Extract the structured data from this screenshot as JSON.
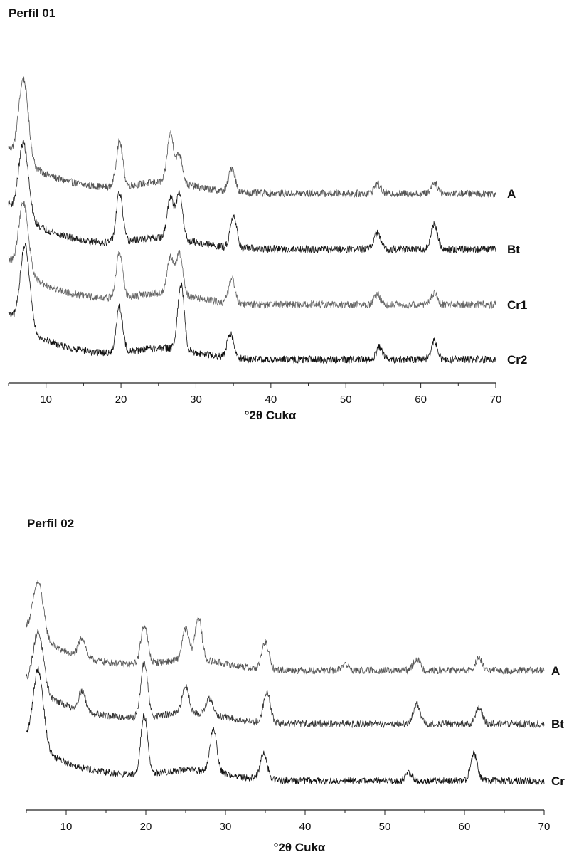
{
  "chart_data": [
    {
      "type": "line",
      "title": "Perfil 01",
      "xlabel": "°2θ Cukα",
      "ylabel": "",
      "xlim": [
        5,
        70
      ],
      "xticks": [
        10,
        20,
        30,
        40,
        50,
        60,
        70
      ],
      "yticks_shown": false,
      "grid": false,
      "legend": "labels at right end of each trace",
      "series": [
        {
          "name": "A",
          "color": "#555555",
          "peaks": [
            {
              "x": 7.0,
              "h": 1.0
            },
            {
              "x": 19.8,
              "h": 0.55
            },
            {
              "x": 26.6,
              "h": 0.6
            },
            {
              "x": 27.8,
              "h": 0.35
            },
            {
              "x": 34.8,
              "h": 0.3
            },
            {
              "x": 54.2,
              "h": 0.12
            },
            {
              "x": 61.8,
              "h": 0.14
            }
          ]
        },
        {
          "name": "Bt",
          "color": "#1a1a1a",
          "peaks": [
            {
              "x": 7.0,
              "h": 0.9
            },
            {
              "x": 19.8,
              "h": 0.6
            },
            {
              "x": 26.6,
              "h": 0.5
            },
            {
              "x": 27.8,
              "h": 0.55
            },
            {
              "x": 35.0,
              "h": 0.4
            },
            {
              "x": 54.2,
              "h": 0.2
            },
            {
              "x": 61.8,
              "h": 0.3
            }
          ]
        },
        {
          "name": "Cr1",
          "color": "#666666",
          "peaks": [
            {
              "x": 7.0,
              "h": 0.85
            },
            {
              "x": 19.8,
              "h": 0.55
            },
            {
              "x": 26.6,
              "h": 0.45
            },
            {
              "x": 27.8,
              "h": 0.5
            },
            {
              "x": 34.8,
              "h": 0.3
            },
            {
              "x": 54.2,
              "h": 0.12
            },
            {
              "x": 61.8,
              "h": 0.14
            }
          ]
        },
        {
          "name": "Cr2",
          "color": "#111111",
          "peaks": [
            {
              "x": 7.2,
              "h": 1.0
            },
            {
              "x": 19.8,
              "h": 0.55
            },
            {
              "x": 28.0,
              "h": 0.8
            },
            {
              "x": 34.6,
              "h": 0.3
            },
            {
              "x": 54.5,
              "h": 0.15
            },
            {
              "x": 61.8,
              "h": 0.22
            }
          ]
        }
      ]
    },
    {
      "type": "line",
      "title": "Perfil 02",
      "xlabel": "°2θ Cukα",
      "ylabel": "",
      "xlim": [
        5,
        70
      ],
      "xticks": [
        10,
        20,
        30,
        40,
        50,
        60,
        70
      ],
      "yticks_shown": false,
      "grid": false,
      "legend": "labels at right end of each trace",
      "series": [
        {
          "name": "A",
          "color": "#555555",
          "peaks": [
            {
              "x": 6.5,
              "h": 0.7
            },
            {
              "x": 12.0,
              "h": 0.25
            },
            {
              "x": 19.8,
              "h": 0.5
            },
            {
              "x": 25.0,
              "h": 0.4
            },
            {
              "x": 26.6,
              "h": 0.55
            },
            {
              "x": 35.0,
              "h": 0.35
            },
            {
              "x": 45.0,
              "h": 0.08
            },
            {
              "x": 54.0,
              "h": 0.15
            },
            {
              "x": 61.8,
              "h": 0.15
            }
          ]
        },
        {
          "name": "Bt",
          "color": "#333333",
          "peaks": [
            {
              "x": 6.5,
              "h": 0.75
            },
            {
              "x": 12.0,
              "h": 0.25
            },
            {
              "x": 19.8,
              "h": 0.7
            },
            {
              "x": 25.0,
              "h": 0.35
            },
            {
              "x": 28.0,
              "h": 0.2
            },
            {
              "x": 35.2,
              "h": 0.4
            },
            {
              "x": 54.0,
              "h": 0.25
            },
            {
              "x": 61.8,
              "h": 0.2
            }
          ]
        },
        {
          "name": "Cr",
          "color": "#111111",
          "peaks": [
            {
              "x": 6.5,
              "h": 1.0
            },
            {
              "x": 19.8,
              "h": 0.75
            },
            {
              "x": 28.5,
              "h": 0.55
            },
            {
              "x": 34.8,
              "h": 0.35
            },
            {
              "x": 53.0,
              "h": 0.1
            },
            {
              "x": 61.2,
              "h": 0.35
            }
          ]
        }
      ]
    }
  ]
}
